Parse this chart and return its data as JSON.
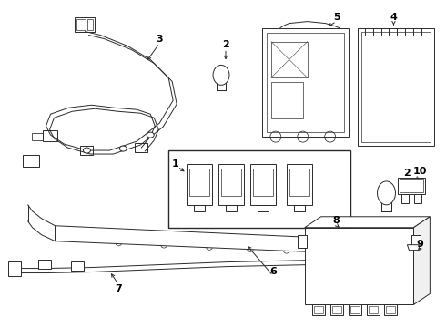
{
  "background_color": "#ffffff",
  "line_color": "#2a2a2a",
  "text_color": "#000000",
  "fig_width": 4.9,
  "fig_height": 3.6,
  "dpi": 100,
  "lw": 0.7
}
